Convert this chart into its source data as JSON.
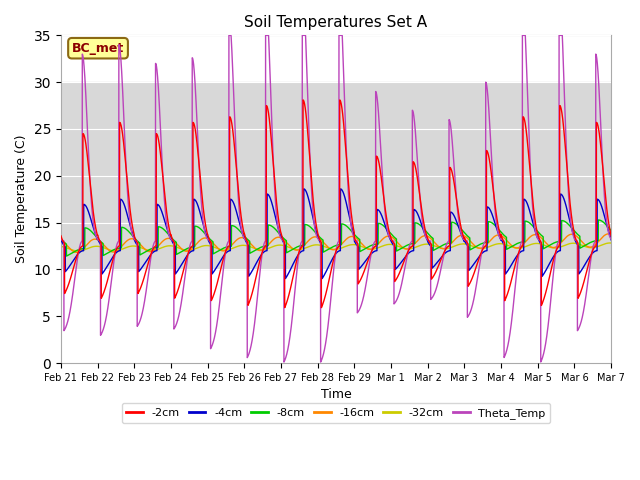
{
  "title": "Soil Temperatures Set A",
  "xlabel": "Time",
  "ylabel": "Soil Temperature (C)",
  "ylim": [
    0,
    35
  ],
  "annotation_text": "BC_met",
  "annotation_color": "#8B0000",
  "annotation_bg": "#ffff99",
  "annotation_border": "#8B6914",
  "x_tick_labels": [
    "Feb 21",
    "Feb 22",
    "Feb 23",
    "Feb 24",
    "Feb 25",
    "Feb 26",
    "Feb 27",
    "Feb 28",
    "Feb 29",
    "Mar 1",
    "Mar 2",
    "Mar 3",
    "Mar 4",
    "Mar 5",
    "Mar 6",
    "Mar 7"
  ],
  "line_colors": {
    "-2cm": "#ff0000",
    "-4cm": "#0000cc",
    "-8cm": "#00cc00",
    "-16cm": "#ff8800",
    "-32cm": "#cccc00",
    "Theta_Temp": "#bb44bb"
  },
  "shaded_band": [
    10,
    30
  ],
  "shaded_color": "#d8d8d8"
}
